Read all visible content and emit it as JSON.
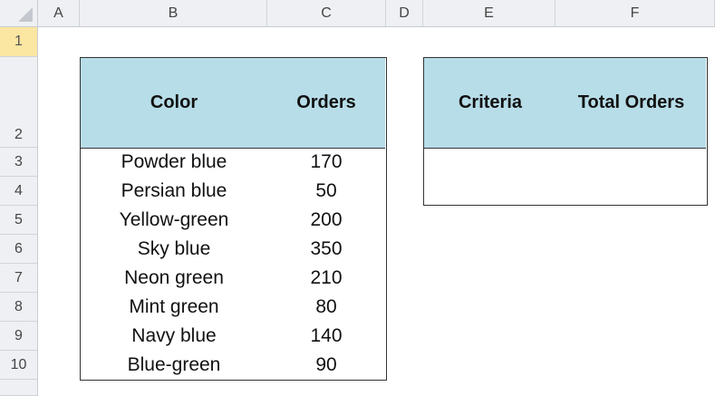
{
  "columns": [
    "A",
    "B",
    "C",
    "D",
    "E",
    "F"
  ],
  "rows": [
    "1",
    "2",
    "3",
    "4",
    "5",
    "6",
    "7",
    "8",
    "9",
    "10"
  ],
  "table1": {
    "headers": [
      "Color",
      "Orders"
    ],
    "rows": [
      [
        "Powder blue",
        "170"
      ],
      [
        "Persian blue",
        "50"
      ],
      [
        "Yellow-green",
        "200"
      ],
      [
        "Sky blue",
        "350"
      ],
      [
        "Neon green",
        "210"
      ],
      [
        "Mint green",
        "80"
      ],
      [
        "Navy blue",
        "140"
      ],
      [
        "Blue-green",
        "90"
      ]
    ]
  },
  "table2": {
    "headers": [
      "Criteria",
      "Total Orders"
    ]
  },
  "colors": {
    "header_fill": "#b7dde8",
    "selected_row": "#fbe6a2"
  }
}
